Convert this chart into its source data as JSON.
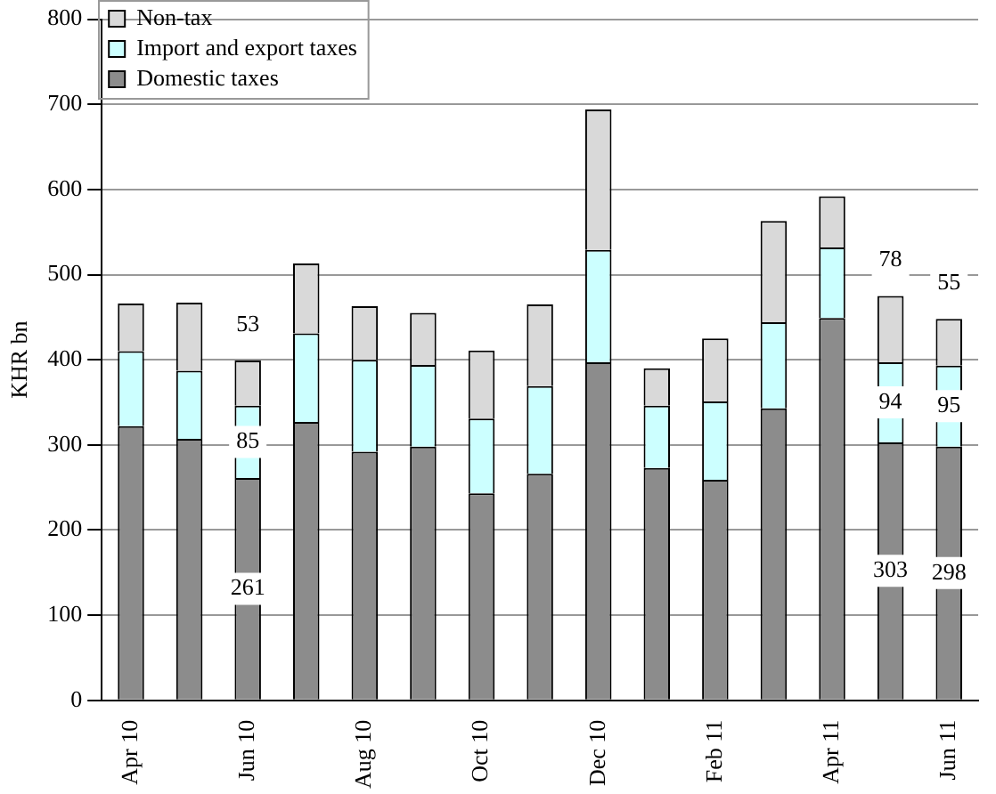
{
  "chart_data": {
    "type": "bar",
    "stacked": true,
    "ylabel": "KHR bn",
    "categories": [
      "Apr 10",
      null,
      "Jun 10",
      null,
      "Aug 10",
      null,
      "Oct 10",
      null,
      "Dec 10",
      null,
      "Feb 11",
      null,
      "Apr 11",
      null,
      "Jun 11"
    ],
    "series": [
      {
        "name": "Domestic taxes",
        "color": "#8c8c8c",
        "values": [
          322,
          307,
          261,
          327,
          292,
          298,
          243,
          266,
          397,
          273,
          259,
          343,
          449,
          303,
          298
        ],
        "value_labels": [
          null,
          null,
          "261",
          null,
          null,
          null,
          null,
          null,
          null,
          null,
          null,
          null,
          null,
          "303",
          "298"
        ]
      },
      {
        "name": "Import and export taxes",
        "color": "#ccffff",
        "values": [
          88,
          80,
          85,
          104,
          108,
          96,
          88,
          103,
          132,
          73,
          92,
          101,
          83,
          94,
          95
        ],
        "value_labels": [
          null,
          null,
          "85",
          null,
          null,
          null,
          null,
          null,
          null,
          null,
          null,
          null,
          null,
          "94",
          "95"
        ]
      },
      {
        "name": "Non-tax",
        "color": "#d9d9d9",
        "values": [
          56,
          80,
          53,
          82,
          63,
          61,
          80,
          96,
          165,
          44,
          74,
          119,
          60,
          78,
          55
        ],
        "value_labels": [
          null,
          null,
          "53",
          null,
          null,
          null,
          null,
          null,
          null,
          null,
          null,
          null,
          null,
          "78",
          "55"
        ]
      }
    ],
    "ylim": [
      0,
      800
    ],
    "yticks": [
      0,
      100,
      200,
      300,
      400,
      500,
      600,
      700,
      800
    ],
    "grid": "y",
    "legend": "top left"
  }
}
